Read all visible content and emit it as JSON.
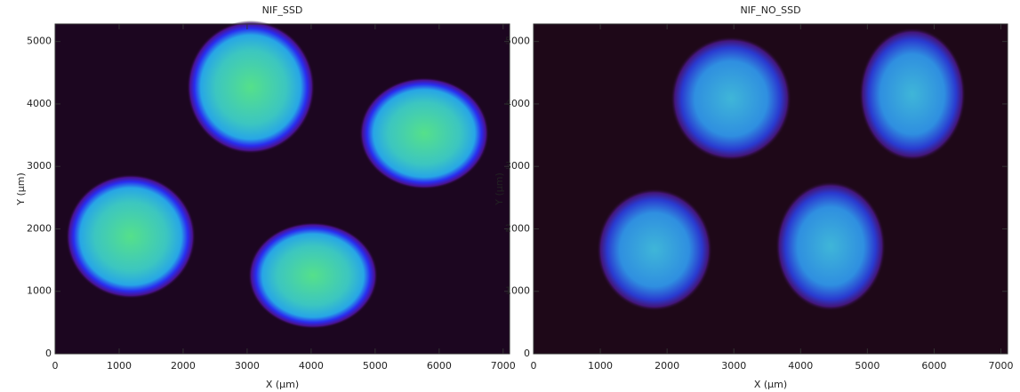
{
  "chart_data": [
    {
      "type": "image",
      "title": "NIF_SSD",
      "x_label": "X (μm)",
      "y_label": "Y (μm)",
      "xlim": [
        0,
        7100
      ],
      "ylim": [
        0,
        5280
      ],
      "xticks": [
        0,
        1000,
        2000,
        3000,
        4000,
        5000,
        6000,
        7000
      ],
      "yticks": [
        0,
        1000,
        2000,
        3000,
        4000,
        5000
      ]
    },
    {
      "type": "image",
      "title": "NIF_NO_SSD",
      "x_label": "X (μm)",
      "y_label": "Y (μm)",
      "xlim": [
        0,
        7100
      ],
      "ylim": [
        0,
        5280
      ],
      "xticks": [
        0,
        1000,
        2000,
        3000,
        4000,
        5000,
        6000,
        7000
      ],
      "yticks": [
        0,
        1000,
        2000,
        3000,
        4000,
        5000
      ]
    }
  ]
}
